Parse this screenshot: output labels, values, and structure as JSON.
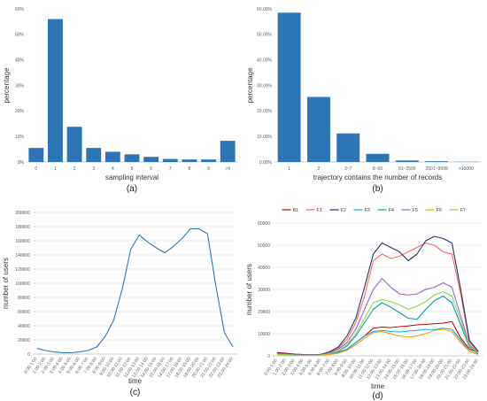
{
  "charts": [
    {
      "id": "a",
      "panel_label": "(a)",
      "type": "bar",
      "xlabel": "sampling interval",
      "ylabel": "percentage",
      "categories": [
        "0",
        "1",
        "2",
        "3",
        "4",
        "5",
        "6",
        "7",
        "8",
        "9",
        ">9"
      ],
      "values": [
        5.5,
        56,
        13.8,
        5.5,
        4,
        3,
        2,
        1.2,
        1,
        1,
        8.3
      ],
      "yticks": [
        "0%",
        "10%",
        "20%",
        "30%",
        "40%",
        "50%",
        "60%"
      ],
      "ylim": [
        0,
        60
      ],
      "color": "#2E75B6",
      "grid": false
    },
    {
      "id": "b",
      "panel_label": "(b)",
      "type": "bar",
      "xlabel": "trajectory contains the number of records",
      "ylabel": "percentage",
      "categories": [
        "1",
        "2",
        "3~7",
        "8~50",
        "51~2500",
        "2501~9999",
        ">10000"
      ],
      "values": [
        58.5,
        25.5,
        11.2,
        3.2,
        0.6,
        0.3,
        0.1
      ],
      "yticks": [
        "0.00%",
        "10.00%",
        "20.00%",
        "30.00%",
        "40.00%",
        "50.00%",
        "60.00%"
      ],
      "ylim": [
        0,
        60
      ],
      "color": "#2E75B6",
      "grid": false
    },
    {
      "id": "c",
      "panel_label": "(c)",
      "type": "line",
      "xlabel": "time",
      "ylabel": "number of users",
      "categories": [
        "0:00-1:00",
        "1:00-2:00",
        "2:00-3:00",
        "3:00-4:00",
        "4:00-5:00",
        "5:00-6:00",
        "6:00-7:00",
        "7:00-8:00",
        "8:00-9:00",
        "9:00-10:00",
        "10:00-11:00",
        "11:00-12:00",
        "12:00-13:00",
        "13:00-14:00",
        "14:00-15:00",
        "15:00-16:00",
        "16:00-17:00",
        "17:00-18:00",
        "18:00-19:00",
        "19:00-20:00",
        "20:00-21:00",
        "21:00-22:00",
        "22:00-23:00",
        "23:00-24:00"
      ],
      "series": [
        {
          "color": "#2E75B6",
          "values": [
            8000,
            5000,
            3000,
            2000,
            2000,
            3000,
            5000,
            10000,
            25000,
            48000,
            92000,
            148000,
            168000,
            158000,
            150000,
            143000,
            152000,
            163000,
            177000,
            177000,
            170000,
            95000,
            30000,
            10000
          ]
        }
      ],
      "yticks": [
        "0",
        "20000",
        "40000",
        "60000",
        "80000",
        "100000",
        "120000",
        "140000",
        "160000",
        "180000",
        "200000"
      ],
      "ylim": [
        0,
        200000
      ],
      "grid": true
    },
    {
      "id": "d",
      "panel_label": "(d)",
      "type": "line",
      "xlabel": "time",
      "ylabel": "number of users",
      "categories": [
        "0:00-1:00",
        "1:00-2:00",
        "2:00-3:00",
        "3:00-4:00",
        "4:00-5:00",
        "5:00-6:00",
        "6:00-7:00",
        "7:00-8:00",
        "8:00-9:00",
        "9:00-10:00",
        "10:00-11:00",
        "11:00-12:00",
        "12:00-13:00",
        "13:00-14:00",
        "14:00-15:00",
        "15:00-16:00",
        "16:00-17:00",
        "17:00-18:00",
        "18:00-19:00",
        "19:00-20:00",
        "20:00-21:00",
        "21:00-22:00",
        "22:00-23:00",
        "23:00-24:00"
      ],
      "series": [
        {
          "name": "B1",
          "color": "#C00000",
          "values": [
            1500,
            1200,
            800,
            600,
            500,
            600,
            900,
            1600,
            3000,
            6000,
            9000,
            12500,
            13000,
            12800,
            13200,
            13500,
            14000,
            14200,
            14500,
            14800,
            15500,
            8000,
            3000,
            1500
          ]
        },
        {
          "name": "F1",
          "color": "#FF6666",
          "values": [
            1000,
            800,
            500,
            400,
            400,
            600,
            1500,
            3500,
            7500,
            15000,
            27000,
            43000,
            46000,
            44000,
            45000,
            47000,
            49000,
            51000,
            50000,
            47000,
            46000,
            28000,
            6000,
            2000
          ]
        },
        {
          "name": "F2",
          "color": "#1F3864",
          "values": [
            1200,
            900,
            600,
            500,
            500,
            700,
            1800,
            4000,
            9000,
            17000,
            31000,
            46000,
            51000,
            49000,
            47000,
            43000,
            46000,
            52000,
            54000,
            53000,
            51000,
            30000,
            7000,
            2000
          ]
        },
        {
          "name": "F3",
          "color": "#00B0F0",
          "values": [
            600,
            500,
            300,
            300,
            300,
            400,
            700,
            1500,
            3000,
            6000,
            9000,
            11000,
            11500,
            11000,
            10800,
            11200,
            11500,
            12000,
            11800,
            12500,
            12000,
            7000,
            2000,
            800
          ]
        },
        {
          "name": "F4",
          "color": "#00A3A3",
          "values": [
            800,
            600,
            400,
            300,
            300,
            400,
            1000,
            2000,
            4500,
            9000,
            15000,
            21000,
            24000,
            22000,
            19500,
            17000,
            16500,
            21000,
            25000,
            27000,
            24000,
            14000,
            4000,
            1000
          ]
        },
        {
          "name": "F5",
          "color": "#9966CC",
          "values": [
            1000,
            800,
            500,
            400,
            400,
            500,
            1200,
            3000,
            6000,
            12000,
            21000,
            30000,
            35000,
            31000,
            28000,
            27500,
            28000,
            30000,
            31000,
            33000,
            31000,
            18000,
            5000,
            1500
          ]
        },
        {
          "name": "F6",
          "color": "#FF9900",
          "values": [
            500,
            400,
            300,
            200,
            200,
            300,
            600,
            1200,
            2500,
            5000,
            8000,
            10500,
            11000,
            10000,
            9000,
            8500,
            9000,
            10000,
            11500,
            12000,
            11000,
            6000,
            2000,
            600
          ]
        },
        {
          "name": "F7",
          "color": "#92D050",
          "values": [
            800,
            600,
            400,
            300,
            300,
            400,
            1000,
            2200,
            5000,
            10000,
            17000,
            24000,
            25500,
            24500,
            23000,
            21000,
            22500,
            24500,
            27500,
            29000,
            27000,
            16000,
            4500,
            1200
          ]
        }
      ],
      "yticks": [
        "0",
        "10000",
        "20000",
        "30000",
        "40000",
        "50000",
        "60000"
      ],
      "ylim": [
        0,
        60000
      ],
      "grid": true,
      "legend": "top"
    }
  ]
}
